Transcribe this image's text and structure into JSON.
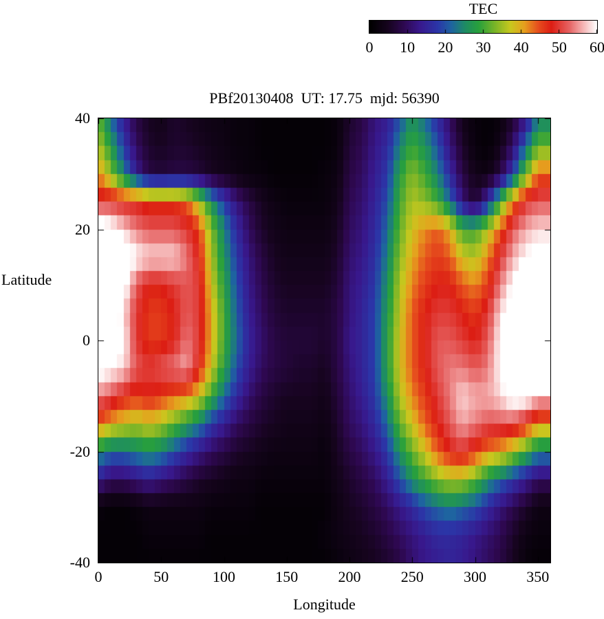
{
  "figure": {
    "background": "#ffffff",
    "axis_color": "#000000"
  },
  "colorbar": {
    "title": "TEC",
    "ticks": [
      0,
      10,
      20,
      30,
      40,
      50,
      60
    ],
    "min": 0,
    "max": 60,
    "palette_stops": [
      [
        0.0,
        "#000000"
      ],
      [
        0.08,
        "#16041e"
      ],
      [
        0.15,
        "#2e0850"
      ],
      [
        0.22,
        "#38188c"
      ],
      [
        0.3,
        "#2b36a8"
      ],
      [
        0.36,
        "#1e64a0"
      ],
      [
        0.42,
        "#1e8c64"
      ],
      [
        0.48,
        "#28a03c"
      ],
      [
        0.55,
        "#78b428"
      ],
      [
        0.62,
        "#c8c81e"
      ],
      [
        0.68,
        "#e6a01e"
      ],
      [
        0.74,
        "#e6501e"
      ],
      [
        0.8,
        "#dc1e14"
      ],
      [
        0.88,
        "#e66464"
      ],
      [
        0.94,
        "#f5b4b4"
      ],
      [
        1.0,
        "#ffffff"
      ]
    ]
  },
  "chart_data": {
    "type": "heatmap",
    "title": "PBf20130408  UT: 17.75  mjd: 56390",
    "xlabel": "Longitude",
    "ylabel": "Latitude",
    "colorbar_label": "TEC",
    "xlim": [
      0,
      360
    ],
    "ylim": [
      -40,
      40
    ],
    "zlim": [
      0,
      60
    ],
    "xticks": [
      0,
      50,
      100,
      150,
      200,
      250,
      300,
      350
    ],
    "yticks": [
      -40,
      -20,
      0,
      20,
      40
    ],
    "grid_note": "TEC values (TECU); rows ordered top-to-bottom lat 40 to -40 step 5; columns lon 0 to 350 step 10; values above 60 saturate to white",
    "lons": [
      0,
      10,
      20,
      30,
      40,
      50,
      60,
      70,
      80,
      90,
      100,
      110,
      120,
      130,
      140,
      150,
      160,
      170,
      180,
      190,
      200,
      210,
      220,
      230,
      240,
      250,
      260,
      270,
      280,
      290,
      300,
      310,
      320,
      330,
      340,
      350
    ],
    "lats": [
      40,
      35,
      30,
      25,
      20,
      15,
      10,
      5,
      0,
      -5,
      -10,
      -15,
      -20,
      -25,
      -30,
      -35,
      -40
    ],
    "grid": [
      [
        32,
        22,
        14,
        8,
        5,
        4,
        6,
        5,
        4,
        3,
        3,
        2,
        2,
        1,
        1,
        1,
        1,
        1,
        1,
        2,
        6,
        8,
        12,
        14,
        20,
        26,
        22,
        16,
        10,
        4,
        2,
        1,
        2,
        6,
        12,
        24
      ],
      [
        36,
        28,
        18,
        10,
        6,
        5,
        6,
        6,
        5,
        4,
        3,
        2,
        2,
        1,
        1,
        1,
        1,
        1,
        1,
        2,
        7,
        9,
        13,
        16,
        24,
        30,
        26,
        20,
        12,
        6,
        2,
        1,
        4,
        10,
        22,
        32
      ],
      [
        42,
        34,
        24,
        14,
        8,
        7,
        8,
        8,
        7,
        5,
        4,
        3,
        2,
        2,
        1,
        1,
        1,
        1,
        2,
        3,
        8,
        10,
        14,
        18,
        28,
        34,
        30,
        24,
        16,
        8,
        4,
        3,
        8,
        18,
        32,
        44
      ],
      [
        50,
        50,
        48,
        48,
        46,
        46,
        46,
        44,
        36,
        26,
        18,
        12,
        8,
        5,
        3,
        2,
        2,
        2,
        2,
        4,
        9,
        11,
        15,
        20,
        30,
        36,
        34,
        30,
        22,
        12,
        6,
        16,
        30,
        42,
        50,
        52
      ],
      [
        64,
        62,
        58,
        54,
        52,
        52,
        52,
        50,
        46,
        34,
        24,
        16,
        10,
        6,
        4,
        3,
        3,
        3,
        3,
        5,
        10,
        12,
        16,
        22,
        32,
        38,
        42,
        44,
        40,
        30,
        30,
        36,
        44,
        52,
        56,
        58
      ],
      [
        66,
        66,
        64,
        60,
        58,
        58,
        58,
        54,
        48,
        36,
        26,
        18,
        12,
        8,
        5,
        4,
        4,
        4,
        4,
        6,
        11,
        13,
        17,
        24,
        34,
        40,
        44,
        46,
        44,
        38,
        36,
        42,
        50,
        56,
        60,
        62
      ],
      [
        68,
        66,
        62,
        52,
        48,
        48,
        50,
        52,
        50,
        38,
        28,
        20,
        13,
        9,
        6,
        5,
        5,
        5,
        5,
        7,
        12,
        14,
        18,
        26,
        36,
        42,
        46,
        48,
        48,
        44,
        42,
        46,
        54,
        60,
        64,
        66
      ],
      [
        68,
        64,
        58,
        50,
        46,
        46,
        48,
        52,
        50,
        40,
        30,
        21,
        14,
        10,
        7,
        6,
        6,
        6,
        6,
        8,
        12,
        15,
        19,
        27,
        37,
        44,
        48,
        50,
        50,
        48,
        46,
        50,
        58,
        64,
        66,
        68
      ],
      [
        66,
        64,
        60,
        50,
        46,
        46,
        48,
        54,
        50,
        40,
        30,
        22,
        15,
        11,
        8,
        7,
        7,
        7,
        6,
        8,
        13,
        15,
        19,
        28,
        38,
        44,
        48,
        52,
        52,
        50,
        48,
        52,
        60,
        66,
        68,
        68
      ],
      [
        62,
        60,
        58,
        52,
        50,
        52,
        54,
        56,
        48,
        38,
        28,
        20,
        14,
        10,
        8,
        7,
        6,
        6,
        5,
        8,
        12,
        15,
        19,
        28,
        38,
        44,
        48,
        52,
        54,
        54,
        52,
        54,
        60,
        66,
        68,
        66
      ],
      [
        54,
        52,
        48,
        46,
        48,
        46,
        44,
        42,
        38,
        30,
        22,
        16,
        11,
        8,
        6,
        5,
        5,
        5,
        4,
        7,
        11,
        14,
        18,
        26,
        36,
        42,
        46,
        50,
        54,
        58,
        56,
        56,
        58,
        62,
        62,
        58
      ],
      [
        44,
        40,
        38,
        36,
        38,
        36,
        32,
        28,
        24,
        18,
        14,
        10,
        8,
        6,
        5,
        4,
        4,
        4,
        3,
        6,
        10,
        12,
        16,
        22,
        32,
        38,
        44,
        48,
        52,
        56,
        54,
        52,
        52,
        52,
        48,
        42
      ],
      [
        26,
        22,
        22,
        24,
        26,
        24,
        20,
        16,
        13,
        10,
        8,
        6,
        5,
        4,
        3,
        3,
        3,
        3,
        2,
        5,
        8,
        10,
        13,
        18,
        26,
        32,
        38,
        44,
        48,
        50,
        46,
        42,
        40,
        36,
        30,
        24
      ],
      [
        14,
        10,
        10,
        12,
        14,
        12,
        10,
        8,
        6,
        5,
        4,
        3,
        3,
        2,
        2,
        2,
        2,
        2,
        2,
        4,
        6,
        8,
        10,
        14,
        20,
        26,
        30,
        34,
        36,
        36,
        32,
        26,
        22,
        18,
        14,
        10
      ],
      [
        2,
        1,
        1,
        2,
        3,
        3,
        3,
        3,
        3,
        2,
        2,
        2,
        2,
        1,
        1,
        1,
        1,
        1,
        1,
        3,
        5,
        6,
        8,
        10,
        13,
        16,
        20,
        22,
        24,
        22,
        20,
        16,
        12,
        9,
        6,
        3
      ],
      [
        1,
        1,
        1,
        1,
        2,
        2,
        2,
        2,
        2,
        1,
        1,
        1,
        1,
        1,
        1,
        1,
        1,
        1,
        2,
        3,
        4,
        5,
        6,
        8,
        10,
        12,
        14,
        16,
        16,
        15,
        13,
        11,
        9,
        6,
        3,
        2
      ],
      [
        1,
        1,
        1,
        1,
        1,
        1,
        1,
        1,
        1,
        1,
        1,
        1,
        1,
        1,
        1,
        1,
        1,
        1,
        1,
        2,
        3,
        4,
        5,
        6,
        8,
        11,
        13,
        14,
        15,
        14,
        12,
        10,
        8,
        5,
        2,
        1
      ]
    ]
  }
}
